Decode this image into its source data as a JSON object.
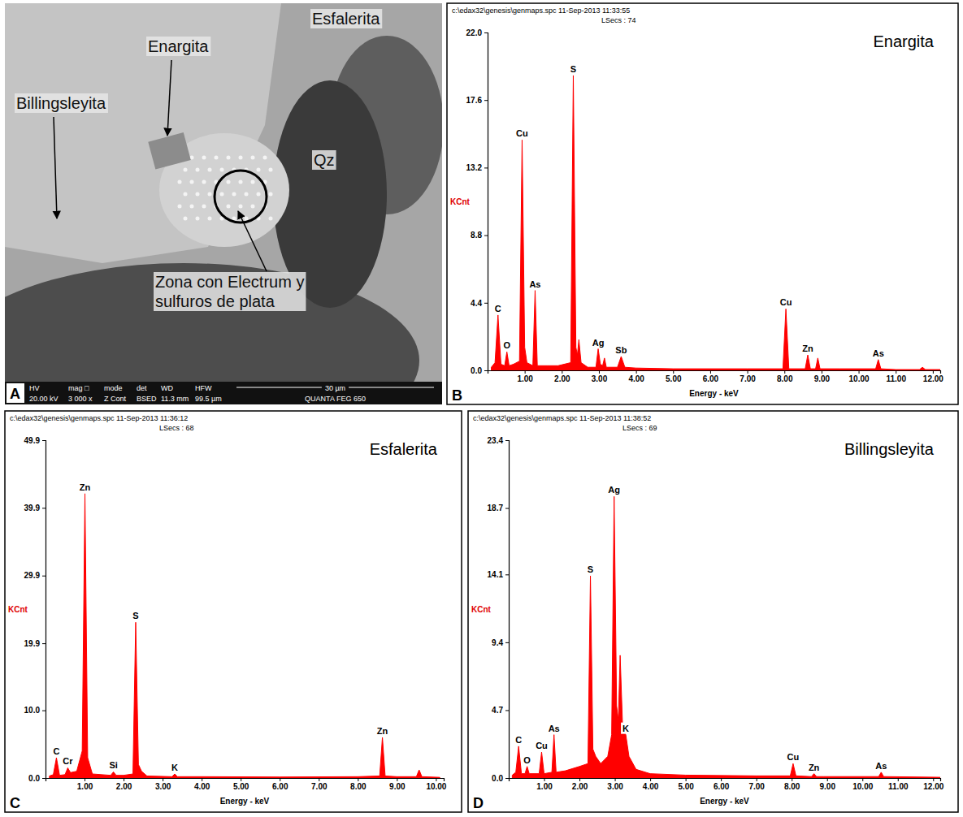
{
  "chart_data": [
    {
      "type": "image",
      "panel": "A",
      "annotations": [
        "Esfalerita",
        "Enargita",
        "Billingsleyita",
        "Qz",
        "Zona con Electrum y sulfuros de plata"
      ],
      "info_bar": {
        "labels": [
          "HV",
          "mag □",
          "mode",
          "det",
          "WD",
          "HFW"
        ],
        "values": [
          "20.00 kV",
          "3 000 x",
          "Z Cont",
          "BSED",
          "11.3 mm",
          "99.5 µm"
        ],
        "scale_bar": "30 µm",
        "instrument": "QUANTA FEG 650"
      }
    },
    {
      "type": "area",
      "panel": "B",
      "title": "Enargita",
      "subtitle": [
        "c:\\edax32\\genesis\\genmaps.spc 11-Sep-2013 11:33:55",
        "LSecs : 74"
      ],
      "x_label": "Energy - keV",
      "y_label": "KCnt",
      "color": "#ff0000",
      "x": [
        0.1,
        0.2,
        0.28,
        0.36,
        0.46,
        0.52,
        0.58,
        0.7,
        0.86,
        0.93,
        1.0,
        1.06,
        1.22,
        1.28,
        1.34,
        1.6,
        1.9,
        2.24,
        2.31,
        2.38,
        2.42,
        2.46,
        2.52,
        2.7,
        2.92,
        2.98,
        3.04,
        3.1,
        3.15,
        3.2,
        3.5,
        3.6,
        3.7,
        4.0,
        5.0,
        6.0,
        7.0,
        7.96,
        8.04,
        8.12,
        8.56,
        8.63,
        8.7,
        8.84,
        8.9,
        8.96,
        9.5,
        10.46,
        10.53,
        10.6,
        11.0,
        11.64,
        11.72,
        11.8,
        12.2
      ],
      "values": [
        0.2,
        0.5,
        3.6,
        0.4,
        0.3,
        1.2,
        0.3,
        0.4,
        0.6,
        15.0,
        1.5,
        0.5,
        0.3,
        5.2,
        0.3,
        0.3,
        0.3,
        0.5,
        19.2,
        1.5,
        1.0,
        2.0,
        0.5,
        0.2,
        0.2,
        1.4,
        0.4,
        0.3,
        0.8,
        0.2,
        0.2,
        0.9,
        0.2,
        0.15,
        0.1,
        0.1,
        0.1,
        0.1,
        4.0,
        0.1,
        0.1,
        1.0,
        0.1,
        0.1,
        0.8,
        0.1,
        0.1,
        0.1,
        0.7,
        0.1,
        0.05,
        0.05,
        0.2,
        0.05,
        0.05
      ],
      "xlim": [
        0,
        12.2
      ],
      "xticks": [
        {
          "value": 1,
          "label": "1.00"
        },
        {
          "value": 2,
          "label": "2.00"
        },
        {
          "value": 3,
          "label": "3.00"
        },
        {
          "value": 4,
          "label": "4.00"
        },
        {
          "value": 5,
          "label": "5.00"
        },
        {
          "value": 6,
          "label": "6.00"
        },
        {
          "value": 7,
          "label": "7.00"
        },
        {
          "value": 8,
          "label": "8.00"
        },
        {
          "value": 9,
          "label": "9.00"
        },
        {
          "value": 10,
          "label": "10.00"
        },
        {
          "value": 11,
          "label": "11.00"
        },
        {
          "value": 12,
          "label": "12.00"
        }
      ],
      "ylim": [
        0,
        22
      ],
      "yticks": [
        {
          "value": 0,
          "label": "0.0"
        },
        4.4,
        8.8,
        13.2,
        17.6,
        {
          "value": 22,
          "label": "22.0"
        }
      ],
      "annotations": [
        {
          "text": "C",
          "x": 0.28,
          "y": 3.6
        },
        {
          "text": "O",
          "x": 0.52,
          "y": 1.2
        },
        {
          "text": "Cu",
          "x": 0.93,
          "y": 15.0
        },
        {
          "text": "As",
          "x": 1.28,
          "y": 5.2
        },
        {
          "text": "S",
          "x": 2.31,
          "y": 19.2
        },
        {
          "text": "Ag",
          "x": 2.98,
          "y": 1.4
        },
        {
          "text": "Sb",
          "x": 3.6,
          "y": 0.9
        },
        {
          "text": "Cu",
          "x": 8.04,
          "y": 4.0
        },
        {
          "text": "Zn",
          "x": 8.63,
          "y": 1.0
        },
        {
          "text": "As",
          "x": 10.53,
          "y": 0.7
        }
      ]
    },
    {
      "type": "area",
      "panel": "C",
      "title": "Esfalerita",
      "subtitle": [
        "c:\\edax32\\genesis\\genmaps.spc 11-Sep-2013 11:36:12",
        "LSecs : 68"
      ],
      "x_label": "Energy - keV",
      "y_label": "KCnt",
      "color": "#ff0000",
      "x": [
        0.1,
        0.2,
        0.28,
        0.36,
        0.5,
        0.57,
        0.64,
        0.8,
        0.94,
        1.01,
        1.08,
        1.2,
        1.67,
        1.74,
        1.81,
        2.0,
        2.24,
        2.31,
        2.38,
        2.46,
        2.6,
        3.24,
        3.31,
        3.38,
        4.0,
        6.0,
        8.0,
        8.56,
        8.63,
        8.7,
        9.0,
        9.5,
        9.57,
        9.64,
        10.1
      ],
      "values": [
        0.3,
        0.5,
        3.0,
        0.4,
        0.5,
        1.5,
        0.8,
        1.0,
        4.0,
        42.0,
        3.0,
        0.6,
        0.4,
        0.9,
        0.4,
        0.4,
        0.6,
        23.0,
        2.0,
        1.0,
        0.3,
        0.2,
        0.6,
        0.2,
        0.2,
        0.15,
        0.2,
        0.3,
        6.0,
        0.3,
        0.2,
        0.2,
        1.2,
        0.2,
        0.1
      ],
      "xlim": [
        0,
        10.2
      ],
      "xticks": [
        {
          "value": 1,
          "label": "1.00"
        },
        {
          "value": 2,
          "label": "2.00"
        },
        {
          "value": 3,
          "label": "3.00"
        },
        {
          "value": 4,
          "label": "4.00"
        },
        {
          "value": 5,
          "label": "5.00"
        },
        {
          "value": 6,
          "label": "6.00"
        },
        {
          "value": 7,
          "label": "7.00"
        },
        {
          "value": 8,
          "label": "8.00"
        },
        {
          "value": 9,
          "label": "9.00"
        },
        {
          "value": 10,
          "label": "10.00"
        }
      ],
      "ylim": [
        0,
        49.9
      ],
      "yticks": [
        {
          "value": 0,
          "label": "0.0"
        },
        {
          "value": 10,
          "label": "10.0"
        },
        19.9,
        29.9,
        39.9,
        49.9
      ],
      "annotations": [
        {
          "text": "C",
          "x": 0.28,
          "y": 3.0
        },
        {
          "text": "Cr",
          "x": 0.57,
          "y": 1.5
        },
        {
          "text": "Zn",
          "x": 1.01,
          "y": 42.0
        },
        {
          "text": "Si",
          "x": 1.74,
          "y": 0.9
        },
        {
          "text": "S",
          "x": 2.31,
          "y": 23.0
        },
        {
          "text": "K",
          "x": 3.31,
          "y": 0.6
        },
        {
          "text": "Zn",
          "x": 8.63,
          "y": 6.0
        }
      ]
    },
    {
      "type": "area",
      "panel": "D",
      "title": "Billingsleyita",
      "subtitle": [
        "c:\\edax32\\genesis\\genmaps.spc 11-Sep-2013 11:38:52",
        "LSecs : 69"
      ],
      "x_label": "Energy - keV",
      "y_label": "KCnt",
      "color": "#ff0000",
      "x": [
        0.1,
        0.2,
        0.28,
        0.36,
        0.46,
        0.52,
        0.58,
        0.86,
        0.93,
        1.0,
        1.22,
        1.28,
        1.34,
        1.6,
        2.0,
        2.24,
        2.31,
        2.38,
        2.46,
        2.6,
        2.8,
        2.91,
        2.98,
        3.05,
        3.1,
        3.15,
        3.22,
        3.31,
        3.4,
        3.6,
        4.0,
        5.0,
        7.0,
        7.96,
        8.04,
        8.12,
        8.56,
        8.63,
        8.7,
        8.9,
        10.46,
        10.53,
        10.6,
        12.2
      ],
      "values": [
        0.2,
        0.4,
        2.2,
        0.3,
        0.3,
        0.8,
        0.3,
        0.3,
        1.8,
        0.3,
        0.4,
        3.0,
        0.4,
        0.5,
        0.8,
        1.0,
        14.0,
        2.0,
        1.5,
        1.0,
        1.5,
        3.0,
        19.5,
        5.0,
        4.0,
        8.5,
        3.5,
        3.0,
        1.5,
        0.6,
        0.3,
        0.2,
        0.15,
        0.15,
        1.0,
        0.15,
        0.1,
        0.3,
        0.1,
        0.1,
        0.1,
        0.4,
        0.1,
        0.05
      ],
      "xlim": [
        0,
        12.2
      ],
      "xticks": [
        {
          "value": 1,
          "label": "1.00"
        },
        {
          "value": 2,
          "label": "2.00"
        },
        {
          "value": 3,
          "label": "3.00"
        },
        {
          "value": 4,
          "label": "4.00"
        },
        {
          "value": 5,
          "label": "5.00"
        },
        {
          "value": 6,
          "label": "6.00"
        },
        {
          "value": 7,
          "label": "7.00"
        },
        {
          "value": 8,
          "label": "8.00"
        },
        {
          "value": 9,
          "label": "9.00"
        },
        {
          "value": 10,
          "label": "10.00"
        },
        {
          "value": 11,
          "label": "11.00"
        },
        {
          "value": 12,
          "label": "12.00"
        }
      ],
      "ylim": [
        0,
        23.4
      ],
      "yticks": [
        {
          "value": 0,
          "label": "0.0"
        },
        4.7,
        9.4,
        14.1,
        18.7,
        23.4
      ],
      "annotations": [
        {
          "text": "C",
          "x": 0.28,
          "y": 2.2
        },
        {
          "text": "O",
          "x": 0.52,
          "y": 0.8
        },
        {
          "text": "Cu",
          "x": 0.93,
          "y": 1.8
        },
        {
          "text": "As",
          "x": 1.28,
          "y": 3.0
        },
        {
          "text": "S",
          "x": 2.31,
          "y": 14.0
        },
        {
          "text": "Ag",
          "x": 2.98,
          "y": 19.5
        },
        {
          "text": "K",
          "x": 3.31,
          "y": 3.0
        },
        {
          "text": "Cu",
          "x": 8.04,
          "y": 1.0
        },
        {
          "text": "Zn",
          "x": 8.63,
          "y": 0.3
        },
        {
          "text": "As",
          "x": 10.53,
          "y": 0.4
        }
      ]
    }
  ]
}
